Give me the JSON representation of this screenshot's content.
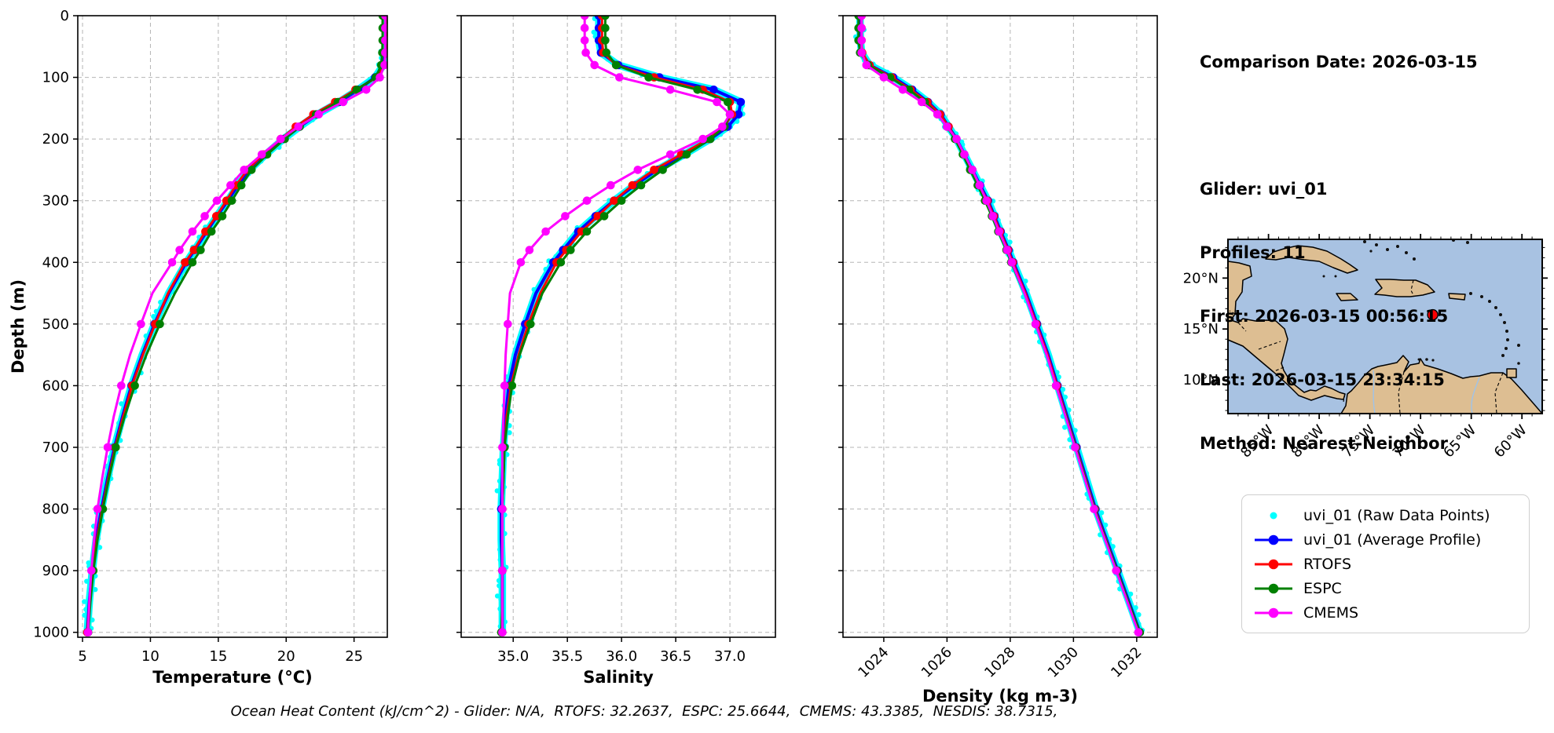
{
  "info": {
    "comparison_date": "Comparison Date: 2026-03-15",
    "glider": "Glider: uvi_01",
    "profiles": "Profiles: 11",
    "first": "First: 2026-03-15 00:56:15",
    "last": "Last: 2026-03-15 23:34:15",
    "method": "Method: Nearest-Neighbor"
  },
  "caption": "Ocean Heat Content (kJ/cm^2) - Glider: N/A,  RTOFS: 32.2637,  ESPC: 25.6644,  CMEMS: 43.3385,  NESDIS: 38.7315,",
  "legend": {
    "items": [
      {
        "id": "raw",
        "label": "uvi_01 (Raw Data Points)",
        "color": "#00ffff",
        "marker": "dot"
      },
      {
        "id": "avg",
        "label": "uvi_01 (Average Profile)",
        "color": "#0000ff",
        "marker": "line-dot"
      },
      {
        "id": "rtofs",
        "label": "RTOFS",
        "color": "#ff0000",
        "marker": "line-dot"
      },
      {
        "id": "espc",
        "label": "ESPC",
        "color": "#008000",
        "marker": "line-dot"
      },
      {
        "id": "cmems",
        "label": "CMEMS",
        "color": "#ff00ff",
        "marker": "line-dot"
      }
    ]
  },
  "chart_data": {
    "type": "line",
    "ylabel": "Depth (m)",
    "ylim": [
      0,
      1008
    ],
    "yticks": [
      0,
      100,
      200,
      300,
      400,
      500,
      600,
      700,
      800,
      900,
      1000
    ],
    "grid": true,
    "legend_position": "lower right",
    "depths": [
      0,
      20,
      40,
      60,
      80,
      100,
      120,
      140,
      160,
      180,
      200,
      225,
      250,
      275,
      300,
      325,
      350,
      380,
      400,
      450,
      500,
      550,
      600,
      650,
      700,
      750,
      800,
      850,
      900,
      950,
      1000
    ],
    "panels": [
      {
        "id": "temperature",
        "xlabel": "Temperature (°C)",
        "xlim": [
          4.65,
          27.45
        ],
        "xticks": [
          5,
          10,
          15,
          20,
          25
        ],
        "tick_labels": [
          "5",
          "10",
          "15",
          "20",
          "25"
        ],
        "rotate_ticks": false
      },
      {
        "id": "salinity",
        "xlabel": "Salinity",
        "xlim": [
          34.52,
          37.42
        ],
        "xticks": [
          35.0,
          35.5,
          36.0,
          36.5,
          37.0
        ],
        "tick_labels": [
          "35.0",
          "35.5",
          "36.0",
          "36.5",
          "37.0"
        ],
        "rotate_ticks": false
      },
      {
        "id": "density",
        "xlabel": "Density (kg m-3)",
        "xlim": [
          1022.71,
          1032.65
        ],
        "xticks": [
          1024,
          1026,
          1028,
          1030,
          1032
        ],
        "tick_labels": [
          "1024",
          "1026",
          "1028",
          "1030",
          "1032"
        ],
        "rotate_ticks": true
      }
    ],
    "series": [
      {
        "name": "uvi_01 (Raw Data Points)",
        "color": "#00ffff",
        "style": "raw",
        "follows": "uvi_01 (Average Profile)"
      },
      {
        "name": "uvi_01 (Average Profile)",
        "color": "#0000ff",
        "style": "line",
        "temperature": [
          27.35,
          27.35,
          27.34,
          27.32,
          27.15,
          26.55,
          25.3,
          23.9,
          22.3,
          21.0,
          19.8,
          18.5,
          17.3,
          16.45,
          15.7,
          14.9,
          14.15,
          13.25,
          12.65,
          11.35,
          10.3,
          9.4,
          8.6,
          7.95,
          7.35,
          6.85,
          6.4,
          6.0,
          5.72,
          5.5,
          5.35
        ],
        "salinity": [
          35.79,
          35.79,
          35.79,
          35.81,
          35.97,
          36.35,
          36.85,
          37.1,
          37.08,
          36.98,
          36.82,
          36.58,
          36.33,
          36.12,
          35.93,
          35.76,
          35.6,
          35.46,
          35.37,
          35.21,
          35.11,
          35.02,
          34.96,
          34.93,
          34.91,
          34.9,
          34.89,
          34.89,
          34.9,
          34.9,
          34.9
        ],
        "density": [
          1023.25,
          1023.25,
          1023.26,
          1023.3,
          1023.55,
          1024.3,
          1024.9,
          1025.4,
          1025.8,
          1026.05,
          1026.3,
          1026.55,
          1026.8,
          1027.05,
          1027.3,
          1027.5,
          1027.7,
          1027.95,
          1028.1,
          1028.5,
          1028.85,
          1029.2,
          1029.5,
          1029.8,
          1030.1,
          1030.4,
          1030.7,
          1031.05,
          1031.4,
          1031.75,
          1032.1
        ]
      },
      {
        "name": "RTOFS",
        "color": "#ff0000",
        "style": "line",
        "temperature": [
          27.4,
          27.4,
          27.38,
          27.35,
          27.2,
          26.7,
          25.1,
          23.6,
          22.0,
          20.7,
          19.6,
          18.3,
          17.15,
          16.3,
          15.6,
          14.85,
          14.05,
          13.2,
          12.55,
          11.3,
          10.35,
          9.45,
          8.65,
          8.0,
          7.4,
          6.9,
          6.45,
          6.05,
          5.75,
          5.52,
          5.35
        ],
        "salinity": [
          35.82,
          35.82,
          35.82,
          35.83,
          35.95,
          36.3,
          36.75,
          37.0,
          37.02,
          36.95,
          36.8,
          36.55,
          36.3,
          36.1,
          35.93,
          35.78,
          35.63,
          35.49,
          35.4,
          35.25,
          35.14,
          35.05,
          34.98,
          34.94,
          34.92,
          34.91,
          34.9,
          34.9,
          34.9,
          34.9,
          34.9
        ],
        "density": [
          1023.3,
          1023.3,
          1023.3,
          1023.32,
          1023.55,
          1024.25,
          1024.85,
          1025.38,
          1025.78,
          1026.05,
          1026.28,
          1026.52,
          1026.78,
          1027.02,
          1027.28,
          1027.48,
          1027.68,
          1027.93,
          1028.08,
          1028.48,
          1028.83,
          1029.18,
          1029.48,
          1029.78,
          1030.08,
          1030.38,
          1030.68,
          1031.03,
          1031.38,
          1031.73,
          1032.08
        ]
      },
      {
        "name": "ESPC",
        "color": "#008000",
        "style": "line",
        "temperature": [
          27.1,
          27.1,
          27.1,
          27.08,
          27.0,
          26.6,
          25.2,
          23.8,
          22.2,
          21.0,
          19.9,
          18.6,
          17.45,
          16.7,
          16.0,
          15.3,
          14.5,
          13.7,
          13.1,
          11.8,
          10.7,
          9.7,
          8.85,
          8.1,
          7.45,
          6.95,
          6.5,
          6.1,
          5.8,
          5.58,
          5.42
        ],
        "salinity": [
          35.85,
          35.85,
          35.85,
          35.86,
          35.95,
          36.25,
          36.7,
          36.98,
          37.0,
          36.95,
          36.82,
          36.6,
          36.38,
          36.18,
          36.0,
          35.84,
          35.68,
          35.53,
          35.44,
          35.27,
          35.16,
          35.06,
          34.99,
          34.95,
          34.92,
          34.91,
          34.9,
          34.9,
          34.9,
          34.9,
          34.89
        ],
        "density": [
          1023.2,
          1023.2,
          1023.2,
          1023.25,
          1023.5,
          1024.2,
          1024.8,
          1025.3,
          1025.7,
          1026.0,
          1026.25,
          1026.5,
          1026.73,
          1026.97,
          1027.2,
          1027.42,
          1027.62,
          1027.88,
          1028.03,
          1028.45,
          1028.8,
          1029.15,
          1029.45,
          1029.77,
          1030.07,
          1030.37,
          1030.67,
          1031.02,
          1031.38,
          1031.73,
          1032.1
        ]
      },
      {
        "name": "CMEMS",
        "color": "#ff00ff",
        "style": "line",
        "temperature": [
          27.3,
          27.3,
          27.3,
          27.3,
          27.25,
          26.9,
          25.9,
          24.2,
          22.4,
          20.9,
          19.6,
          18.2,
          16.9,
          15.9,
          14.9,
          14.0,
          13.1,
          12.15,
          11.6,
          10.15,
          9.3,
          8.5,
          7.85,
          7.3,
          6.85,
          6.45,
          6.1,
          5.85,
          5.65,
          5.5,
          5.4
        ],
        "salinity": [
          35.66,
          35.66,
          35.66,
          35.67,
          35.75,
          35.98,
          36.45,
          36.88,
          37.0,
          36.93,
          36.75,
          36.45,
          36.15,
          35.9,
          35.68,
          35.48,
          35.3,
          35.15,
          35.07,
          34.97,
          34.95,
          34.93,
          34.92,
          34.91,
          34.9,
          34.9,
          34.9,
          34.9,
          34.9,
          34.9,
          34.9
        ],
        "density": [
          1023.3,
          1023.3,
          1023.3,
          1023.3,
          1023.45,
          1024.0,
          1024.6,
          1025.2,
          1025.7,
          1026.0,
          1026.3,
          1026.55,
          1026.8,
          1027.03,
          1027.25,
          1027.45,
          1027.65,
          1027.9,
          1028.05,
          1028.45,
          1028.8,
          1029.15,
          1029.45,
          1029.75,
          1030.05,
          1030.35,
          1030.65,
          1031.0,
          1031.35,
          1031.7,
          1032.05
        ]
      }
    ],
    "map": {
      "extent": {
        "lon": [
          -89,
          -58
        ],
        "lat": [
          6.7,
          23.8
        ]
      },
      "lon_tick_vals": [
        -85,
        -80,
        -75,
        -70,
        -65,
        -60
      ],
      "lon_ticks": [
        "85°W",
        "80°W",
        "75°W",
        "70°W",
        "65°W",
        "60°W"
      ],
      "lat_tick_vals": [
        20,
        15,
        10
      ],
      "lat_ticks": [
        "20°N",
        "15°N",
        "10°N"
      ],
      "marker": {
        "lon": -68.8,
        "lat": 16.4,
        "color": "#ff0000"
      },
      "land_color": "#ddbe92",
      "ocean_color": "#a8c2e2"
    }
  }
}
